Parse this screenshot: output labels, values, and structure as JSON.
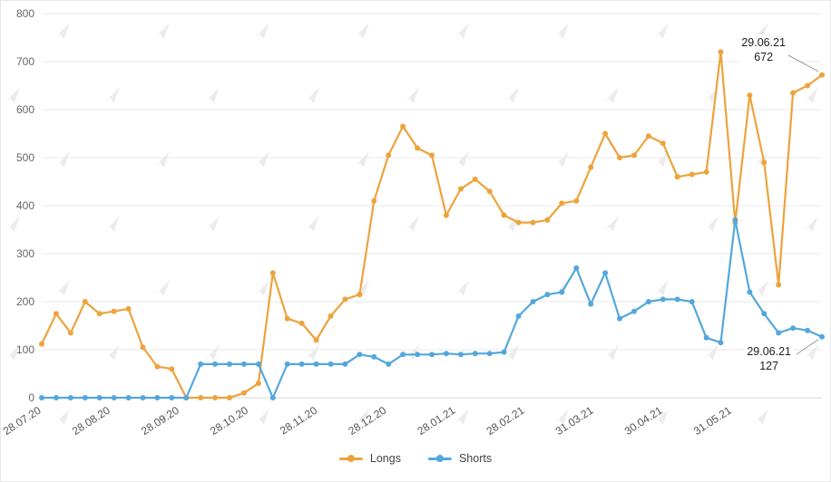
{
  "chart_data": {
    "type": "line",
    "title": "",
    "x_labels": [
      "28.07.20",
      "28.08.20",
      "28.09.20",
      "28.10.20",
      "28.11.20",
      "28.12.20",
      "28.01.21",
      "28.02.21",
      "31.03.21",
      "30.04.21",
      "31.05.21"
    ],
    "y_ticks": [
      0,
      100,
      200,
      300,
      400,
      500,
      600,
      700,
      800
    ],
    "ylim": [
      0,
      800
    ],
    "grid": "horizontal",
    "legend_position": "bottom-center",
    "series": [
      {
        "name": "Longs",
        "color": "#EDA33C",
        "values": [
          112,
          175,
          135,
          200,
          175,
          180,
          185,
          105,
          65,
          60,
          0,
          0,
          0,
          0,
          10,
          30,
          260,
          165,
          155,
          120,
          170,
          205,
          215,
          410,
          505,
          565,
          520,
          505,
          380,
          435,
          455,
          430,
          380,
          365,
          365,
          370,
          405,
          410,
          480,
          550,
          500,
          505,
          545,
          530,
          460,
          465,
          470,
          720,
          365,
          630,
          490,
          235,
          635,
          650,
          672
        ]
      },
      {
        "name": "Shorts",
        "color": "#54A7DC",
        "values": [
          0,
          0,
          0,
          0,
          0,
          0,
          0,
          0,
          0,
          0,
          0,
          70,
          70,
          70,
          70,
          70,
          0,
          70,
          70,
          70,
          70,
          70,
          90,
          85,
          70,
          90,
          90,
          90,
          92,
          90,
          92,
          92,
          95,
          170,
          200,
          215,
          220,
          270,
          195,
          260,
          165,
          180,
          200,
          205,
          205,
          200,
          125,
          115,
          370,
          220,
          175,
          135,
          145,
          140,
          127
        ]
      }
    ],
    "annotations": {
      "longs": {
        "date": "29.06.21",
        "value": "672"
      },
      "shorts": {
        "date": "29.06.21",
        "value": "127"
      }
    }
  }
}
